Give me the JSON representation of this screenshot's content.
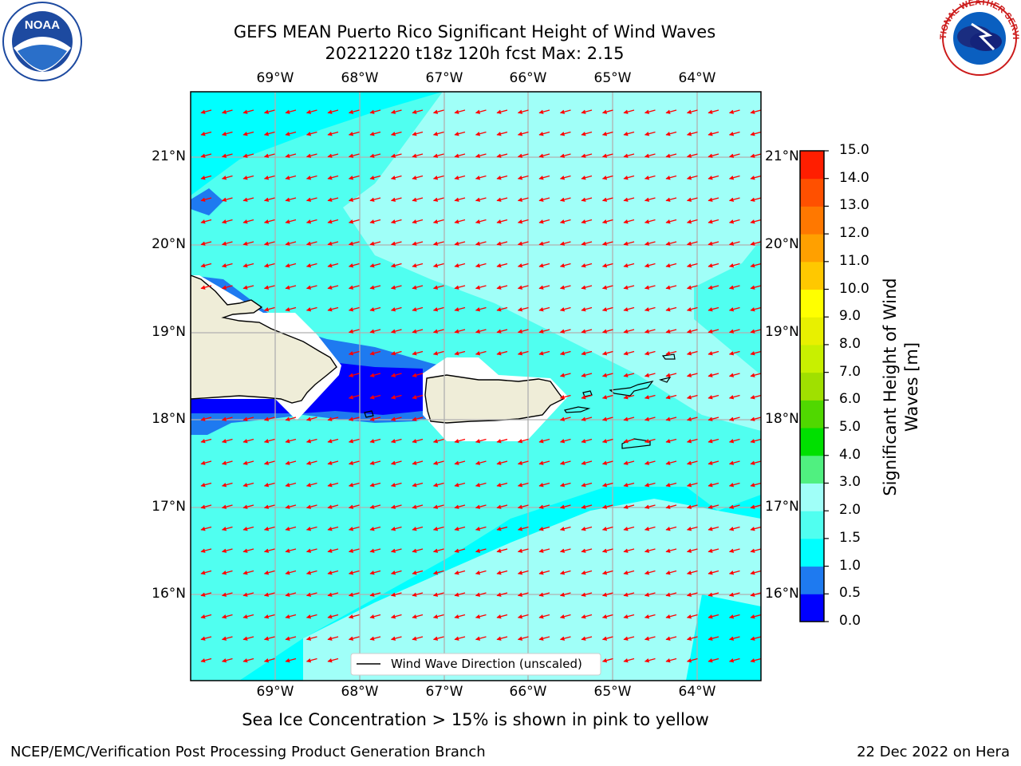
{
  "title": {
    "line1": "GEFS MEAN Puerto Rico Significant Height of Wind Waves",
    "line2": "20221220 t18z 120h fcst   Max: 2.15"
  },
  "longitude_labels": [
    "69°W",
    "68°W",
    "67°W",
    "66°W",
    "65°W",
    "64°W"
  ],
  "latitude_labels": [
    "21°N",
    "20°N",
    "19°N",
    "18°N",
    "17°N",
    "16°N"
  ],
  "legend": {
    "label": "Wind Wave Direction (unscaled)"
  },
  "colorbar": {
    "title": "Significant Height of Wind Waves [m]",
    "ticks": [
      "0.0",
      "0.5",
      "1.0",
      "1.5",
      "2.0",
      "3.0",
      "4.0",
      "5.0",
      "6.0",
      "7.0",
      "8.0",
      "9.0",
      "10.0",
      "11.0",
      "12.0",
      "13.0",
      "14.0",
      "15.0"
    ],
    "colors": [
      "#0000ff",
      "#1e7af0",
      "#00ffff",
      "#50fff0",
      "#a0fff8",
      "#50f080",
      "#00e000",
      "#50d800",
      "#a0e000",
      "#c8f000",
      "#e8f000",
      "#ffff00",
      "#ffc800",
      "#ffa000",
      "#ff7800",
      "#ff5000",
      "#ff1e00"
    ]
  },
  "caption": "Sea Ice Concentration > 15% is shown in pink to yellow",
  "footer": {
    "left": "NCEP/EMC/Verification Post Processing Product Generation Branch",
    "right": "22 Dec 2022 on Hera"
  },
  "logos": {
    "left": "NOAA",
    "left_ring": "NATIONAL OCEANIC AND ATMOSPHERIC ADMINISTRATION · U.S. DEPARTMENT OF COMMERCE",
    "right_ring": "NATIONAL WEATHER SERVICE"
  },
  "colors": {
    "ocean_base": "#00ffff",
    "ocean_mid": "#50fff0",
    "ocean_light": "#a0fff8",
    "shallow": "#1e7af0",
    "calm": "#0000ff",
    "land": "#efedd8",
    "arrow": "#ff0000",
    "grid": "#b0b0b0"
  },
  "arrow_direction": "toward west, slightly south"
}
